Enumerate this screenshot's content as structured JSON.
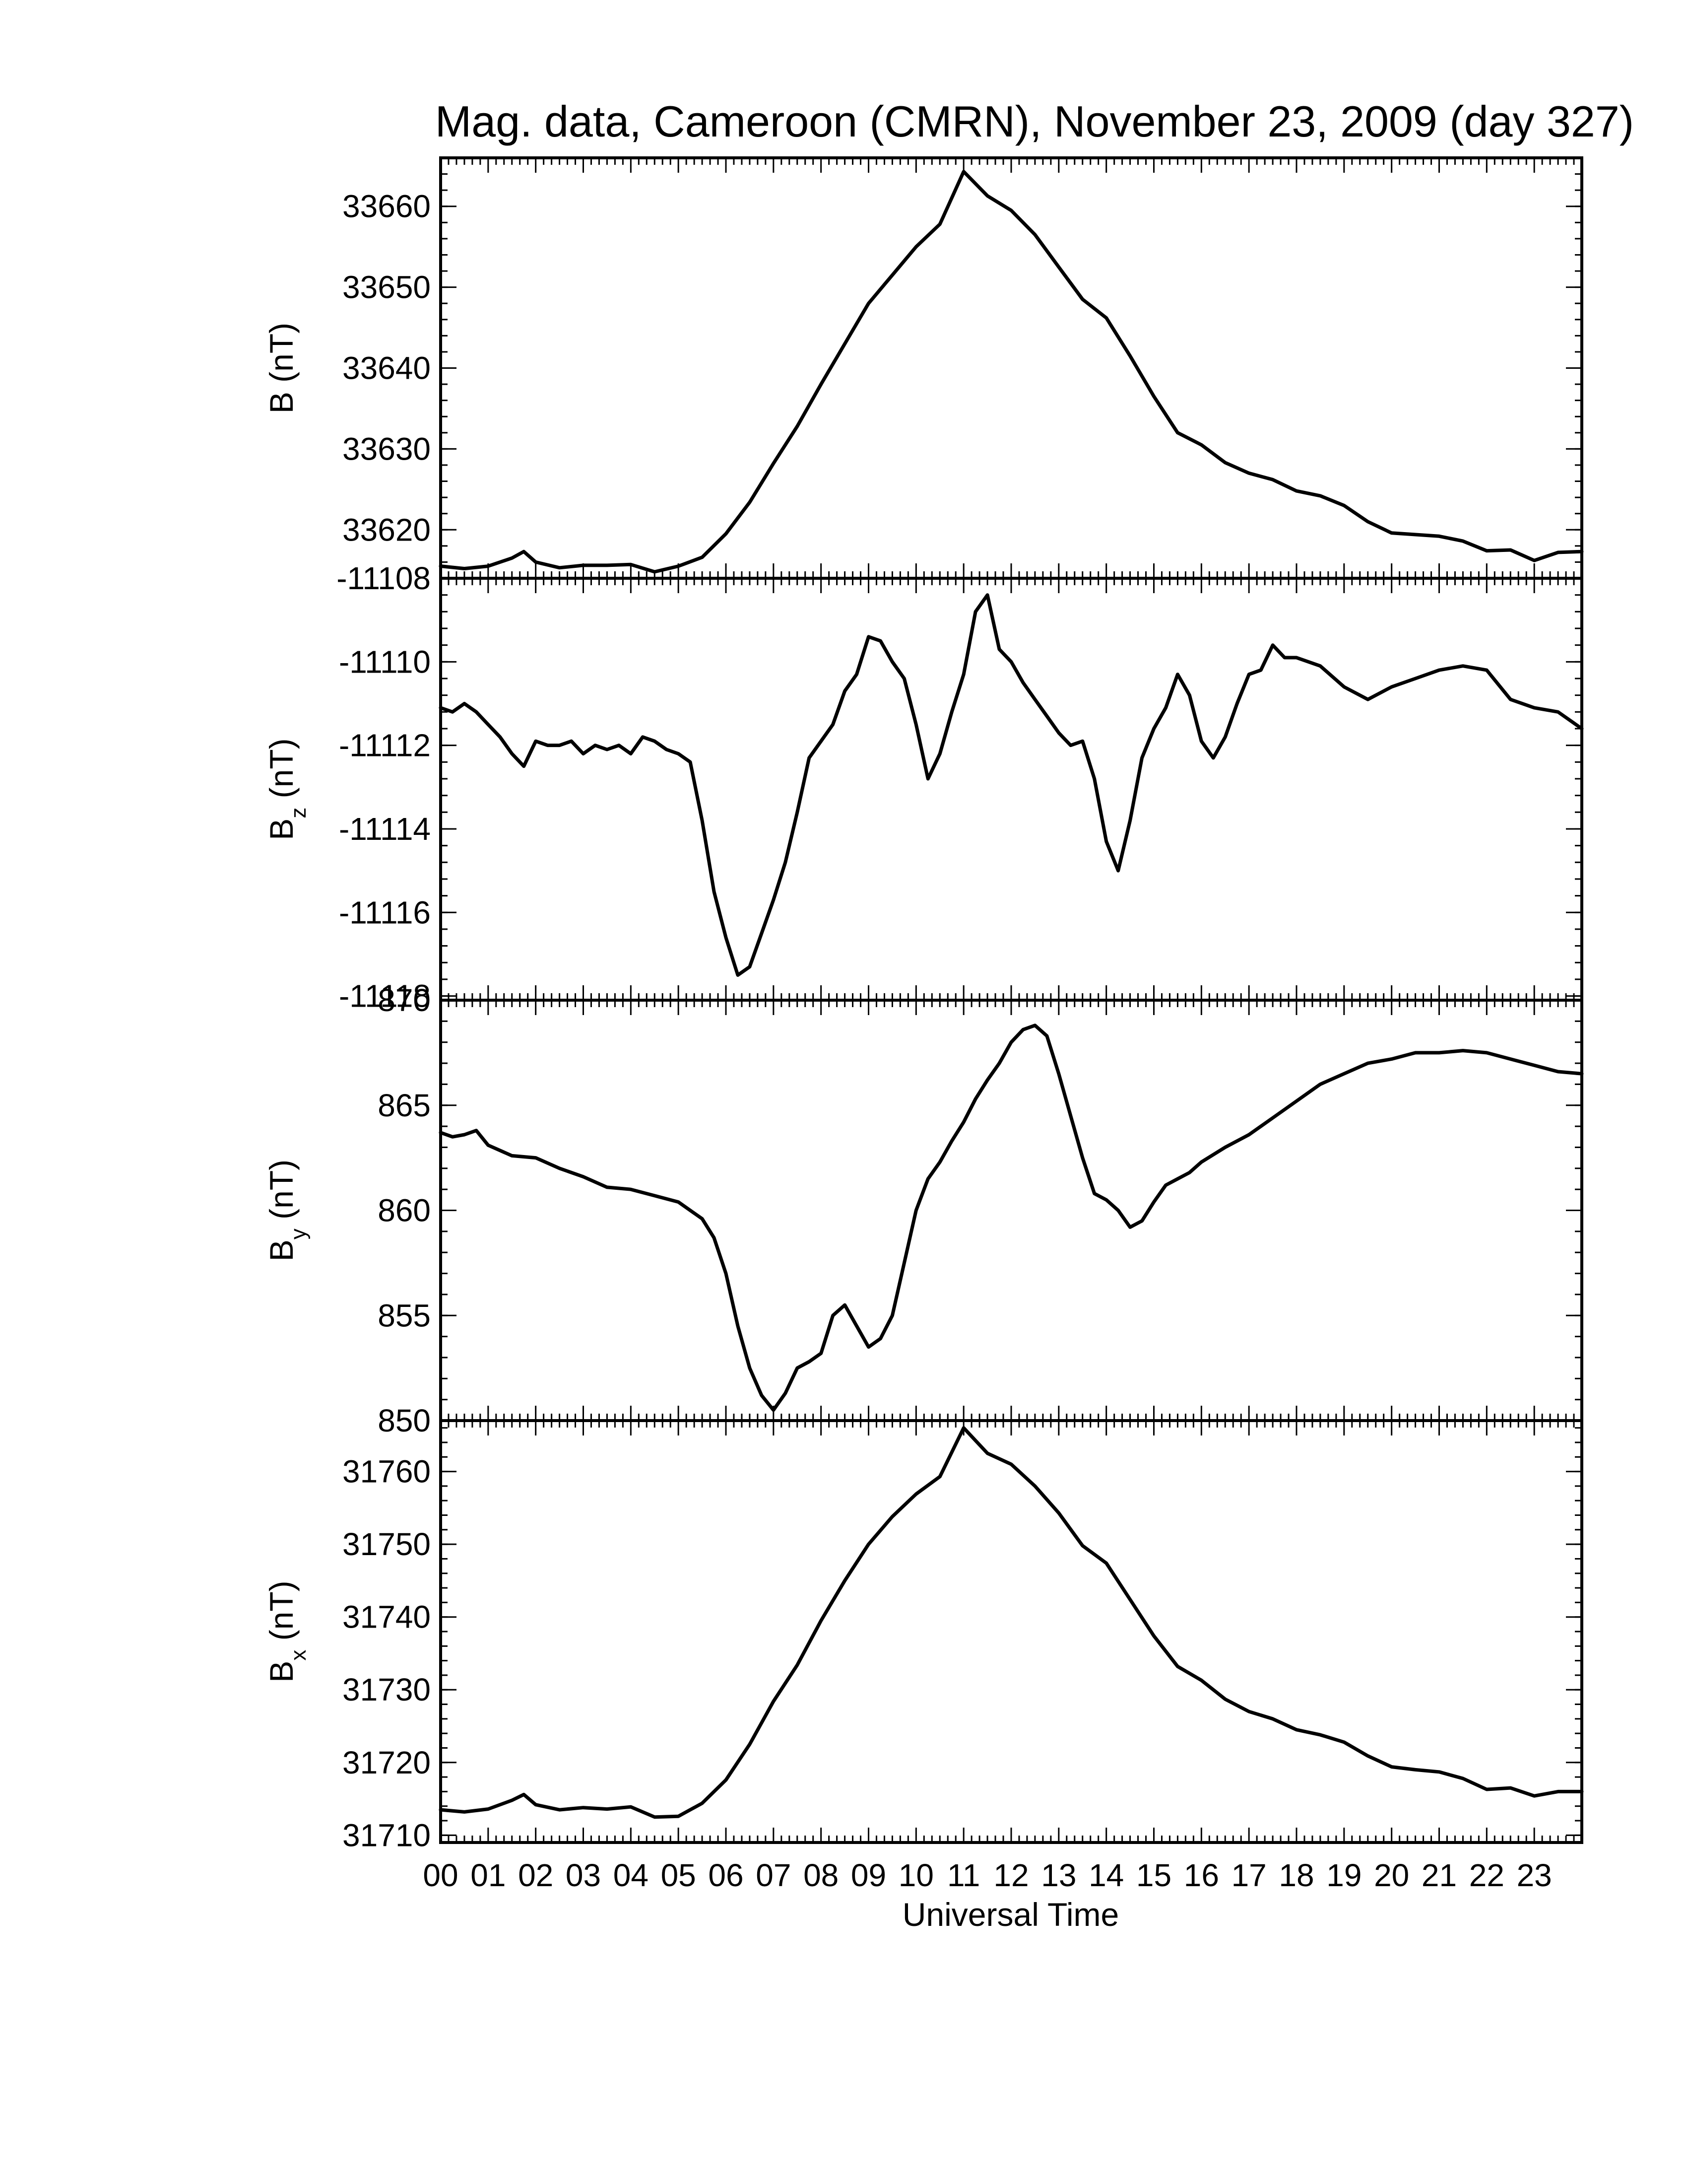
{
  "figure": {
    "title": "Mag. data, Cameroon (CMRN), November 23, 2009 (day 327)",
    "xlabel": "Universal Time"
  },
  "chart_data": [
    {
      "type": "line",
      "panel": "B",
      "ylabel": "B (nT)",
      "ylim": [
        33614,
        33666
      ],
      "yticks": [
        33620,
        33630,
        33640,
        33650,
        33660
      ],
      "xlim": [
        0,
        24
      ],
      "xticks": [
        "00",
        "01",
        "02",
        "03",
        "04",
        "05",
        "06",
        "07",
        "08",
        "09",
        "10",
        "11",
        "12",
        "13",
        "14",
        "15",
        "16",
        "17",
        "18",
        "19",
        "20",
        "21",
        "22",
        "23"
      ],
      "series": [
        {
          "color": "#000000",
          "x": [
            0,
            0.5,
            1,
            1.5,
            1.75,
            2,
            2.5,
            3,
            3.5,
            4,
            4.5,
            5,
            5.5,
            6,
            6.5,
            7,
            7.5,
            8,
            8.5,
            9,
            9.5,
            10,
            10.5,
            11,
            11.5,
            12,
            12.5,
            13,
            13.5,
            14,
            14.5,
            15,
            15.5,
            16,
            16.5,
            17,
            17.5,
            18,
            18.5,
            19,
            19.5,
            20,
            20.5,
            21,
            21.5,
            22,
            22.5,
            23,
            23.5,
            24
          ],
          "y": [
            33615.5,
            33615.2,
            33615.5,
            33616.5,
            33617.3,
            33616,
            33615.3,
            33615.6,
            33615.6,
            33615.7,
            33614.8,
            33615.5,
            33616.6,
            33619.5,
            33623.4,
            33628.2,
            33632.8,
            33638,
            33643,
            33648,
            33651.5,
            33655,
            33657.8,
            33664.3,
            33661.3,
            33659.5,
            33656.5,
            33652.5,
            33648.5,
            33646.2,
            33641.5,
            33636.5,
            33632,
            33630.5,
            33628.3,
            33627,
            33626.2,
            33624.8,
            33624.2,
            33623,
            33621,
            33619.6,
            33619.4,
            33619.2,
            33618.6,
            33617.4,
            33617.5,
            33616.2,
            33617.2,
            33617.3
          ]
        }
      ]
    },
    {
      "type": "line",
      "panel": "Bz",
      "ylabel": "B",
      "ylabel_sub": "z",
      "ylabel_unit": " (nT)",
      "ylim": [
        -11118.1,
        -11108.0
      ],
      "yticks": [
        -11118,
        -11116,
        -11114,
        -11112,
        -11110,
        -11108
      ],
      "xlim": [
        0,
        24
      ],
      "series": [
        {
          "color": "#000000",
          "x": [
            0,
            0.25,
            0.5,
            0.75,
            1,
            1.25,
            1.5,
            1.75,
            2,
            2.25,
            2.5,
            2.75,
            3,
            3.25,
            3.5,
            3.75,
            4,
            4.25,
            4.5,
            4.75,
            5,
            5.25,
            5.5,
            5.75,
            6,
            6.25,
            6.5,
            6.75,
            7,
            7.25,
            7.5,
            7.75,
            8,
            8.25,
            8.5,
            8.75,
            9,
            9.25,
            9.5,
            9.75,
            10,
            10.25,
            10.5,
            10.75,
            11,
            11.25,
            11.5,
            11.75,
            12,
            12.25,
            12.5,
            12.75,
            13,
            13.25,
            13.5,
            13.75,
            14,
            14.25,
            14.5,
            14.75,
            15,
            15.25,
            15.5,
            15.75,
            16,
            16.25,
            16.5,
            16.75,
            17,
            17.25,
            17.5,
            17.75,
            18,
            18.5,
            19,
            19.5,
            20,
            20.5,
            21,
            21.5,
            22,
            22.5,
            23,
            23.5,
            24
          ],
          "y": [
            -11111.1,
            -11111.2,
            -11111,
            -11111.2,
            -11111.5,
            -11111.8,
            -11112.2,
            -11112.5,
            -11111.9,
            -11112,
            -11112,
            -11111.9,
            -11112.2,
            -11112,
            -11112.1,
            -11112,
            -11112.2,
            -11111.8,
            -11111.9,
            -11112.1,
            -11112.2,
            -11112.4,
            -11113.8,
            -11115.5,
            -11116.6,
            -11117.5,
            -11117.3,
            -11116.5,
            -11115.7,
            -11114.8,
            -11113.6,
            -11112.3,
            -11111.9,
            -11111.5,
            -11110.7,
            -11110.3,
            -11109.4,
            -11109.5,
            -11110,
            -11110.4,
            -11111.5,
            -11112.8,
            -11112.2,
            -11111.2,
            -11110.3,
            -11108.8,
            -11108.4,
            -11109.7,
            -11110,
            -11110.5,
            -11110.9,
            -11111.3,
            -11111.7,
            -11112,
            -11111.9,
            -11112.8,
            -11114.3,
            -11115,
            -11113.8,
            -11112.3,
            -11111.6,
            -11111.1,
            -11110.3,
            -11110.8,
            -11111.9,
            -11112.3,
            -11111.8,
            -11111,
            -11110.3,
            -11110.2,
            -11109.6,
            -11109.9,
            -11109.9,
            -11110.1,
            -11110.6,
            -11110.9,
            -11110.6,
            -11110.4,
            -11110.2,
            -11110.1,
            -11110.2,
            -11110.9,
            -11111.1,
            -11111.2,
            -11111.6
          ]
        }
      ]
    },
    {
      "type": "line",
      "panel": "By",
      "ylabel": "B",
      "ylabel_sub": "y",
      "ylabel_unit": " (nT)",
      "ylim": [
        850,
        870
      ],
      "yticks": [
        850,
        855,
        860,
        865,
        870
      ],
      "xlim": [
        0,
        24
      ],
      "series": [
        {
          "color": "#000000",
          "x": [
            0,
            0.25,
            0.5,
            0.75,
            1,
            1.5,
            2,
            2.5,
            3,
            3.5,
            4,
            4.5,
            5,
            5.25,
            5.5,
            5.75,
            6,
            6.25,
            6.5,
            6.75,
            7,
            7.25,
            7.5,
            7.75,
            8,
            8.25,
            8.5,
            8.75,
            9,
            9.25,
            9.5,
            9.75,
            10,
            10.25,
            10.5,
            10.75,
            11,
            11.25,
            11.5,
            11.75,
            12,
            12.25,
            12.5,
            12.75,
            13,
            13.25,
            13.5,
            13.75,
            14,
            14.25,
            14.5,
            14.75,
            15,
            15.25,
            15.5,
            15.75,
            16,
            16.5,
            17,
            17.5,
            18,
            18.5,
            19,
            19.5,
            20,
            20.5,
            21,
            21.5,
            22,
            22.5,
            23,
            23.5,
            24
          ],
          "y": [
            863.7,
            863.5,
            863.6,
            863.8,
            863.1,
            862.6,
            862.5,
            862,
            861.6,
            861.1,
            861,
            860.7,
            860.4,
            860,
            859.6,
            858.7,
            857,
            854.5,
            852.5,
            851.2,
            850.5,
            851.3,
            852.5,
            852.8,
            853.2,
            855,
            855.5,
            854.5,
            853.5,
            853.9,
            855,
            857.5,
            860,
            861.5,
            862.3,
            863.3,
            864.2,
            865.3,
            866.2,
            867,
            868,
            868.6,
            868.8,
            868.3,
            866.5,
            864.5,
            862.5,
            860.8,
            860.5,
            860,
            859.2,
            859.5,
            860.4,
            861.2,
            861.5,
            861.8,
            862.3,
            863,
            863.6,
            864.4,
            865.2,
            866,
            866.5,
            867,
            867.2,
            867.5,
            867.5,
            867.6,
            867.5,
            867.2,
            866.9,
            866.6,
            866.5
          ]
        }
      ]
    },
    {
      "type": "line",
      "panel": "Bx",
      "ylabel": "B",
      "ylabel_sub": "x",
      "ylabel_unit": " (nT)",
      "ylim": [
        31709,
        31767
      ],
      "yticks": [
        31710,
        31720,
        31730,
        31740,
        31750,
        31760
      ],
      "xlim": [
        0,
        24
      ],
      "series": [
        {
          "color": "#000000",
          "x": [
            0,
            0.5,
            1,
            1.5,
            1.75,
            2,
            2.5,
            3,
            3.5,
            4,
            4.5,
            5,
            5.5,
            6,
            6.5,
            7,
            7.5,
            8,
            8.5,
            9,
            9.5,
            10,
            10.5,
            11,
            11.5,
            12,
            12.5,
            13,
            13.5,
            14,
            14.5,
            15,
            15.5,
            16,
            16.5,
            17,
            17.5,
            18,
            18.5,
            19,
            19.5,
            20,
            20.5,
            21,
            21.5,
            22,
            22.5,
            23,
            23.5,
            24
          ],
          "y": [
            31713.5,
            31713.2,
            31713.6,
            31714.8,
            31715.6,
            31714.2,
            31713.5,
            31713.8,
            31713.6,
            31713.9,
            31712.5,
            31712.6,
            31714.4,
            31717.6,
            31722.5,
            31728.4,
            31733.4,
            31739.5,
            31745,
            31750,
            31753.8,
            31756.9,
            31759.3,
            31766,
            31762.5,
            31761,
            31758,
            31754.3,
            31749.8,
            31747.4,
            31742.4,
            31737.4,
            31733.2,
            31731.3,
            31728.7,
            31727,
            31726,
            31724.5,
            31723.8,
            31722.8,
            31720.9,
            31719.4,
            31719,
            31718.7,
            31717.8,
            31716.3,
            31716.5,
            31715.4,
            31716,
            31716
          ]
        }
      ]
    }
  ]
}
